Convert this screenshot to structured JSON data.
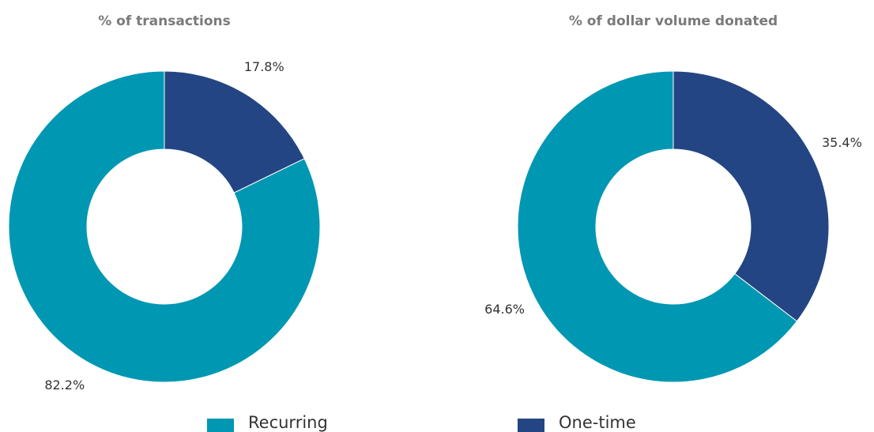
{
  "chart_data": [
    {
      "type": "donut",
      "title": "% of transactions",
      "categories": [
        "One-time",
        "Recurring"
      ],
      "values": [
        17.8,
        82.2
      ],
      "value_labels": [
        "17.8%",
        "82.2%"
      ],
      "colors": [
        "#244583",
        "#0097b3"
      ]
    },
    {
      "type": "donut",
      "title": "% of dollar volume donated",
      "categories": [
        "One-time",
        "Recurring"
      ],
      "values": [
        35.4,
        64.6
      ],
      "value_labels": [
        "35.4%",
        "64.6%"
      ],
      "colors": [
        "#244583",
        "#0097b3"
      ]
    }
  ]
}
